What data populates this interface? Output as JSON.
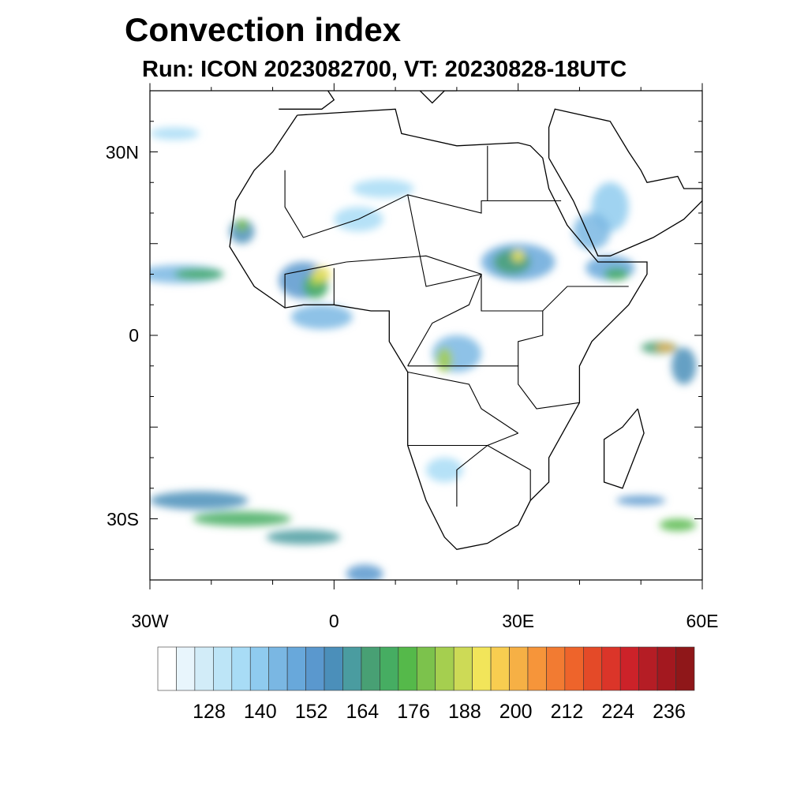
{
  "title": "Convection index",
  "subtitle": "Run: ICON 2023082700,  VT: 20230828-18UTC",
  "map": {
    "lon_range": [
      -30,
      60
    ],
    "lat_range": [
      -40,
      40
    ],
    "y_ticks": [
      {
        "lat": 30,
        "label": "30N"
      },
      {
        "lat": 0,
        "label": "0"
      },
      {
        "lat": -30,
        "label": "30S"
      }
    ],
    "x_ticks": [
      {
        "lon": -30,
        "label": "30W"
      },
      {
        "lon": 0,
        "label": "0"
      },
      {
        "lon": 30,
        "label": "30E"
      },
      {
        "lon": 60,
        "label": "60E"
      }
    ]
  },
  "colorbar": {
    "labels": [
      "128",
      "140",
      "152",
      "164",
      "176",
      "188",
      "200",
      "212",
      "224",
      "236"
    ],
    "colors": [
      "#ffffff",
      "#e8f5fc",
      "#d2ecf8",
      "#bde5f7",
      "#a8dcf6",
      "#8fcbef",
      "#7ab7e3",
      "#68a8db",
      "#5a98ce",
      "#4b8fba",
      "#4a9ca0",
      "#48a074",
      "#46ad62",
      "#55b94a",
      "#7cc24c",
      "#a5cf4f",
      "#cdda56",
      "#f2e55a",
      "#f8cd50",
      "#f6b045",
      "#f6953a",
      "#f27b32",
      "#ee642b",
      "#e44a28",
      "#db3529",
      "#cc2229",
      "#b51d25",
      "#a3181f",
      "#8f1719"
    ]
  }
}
